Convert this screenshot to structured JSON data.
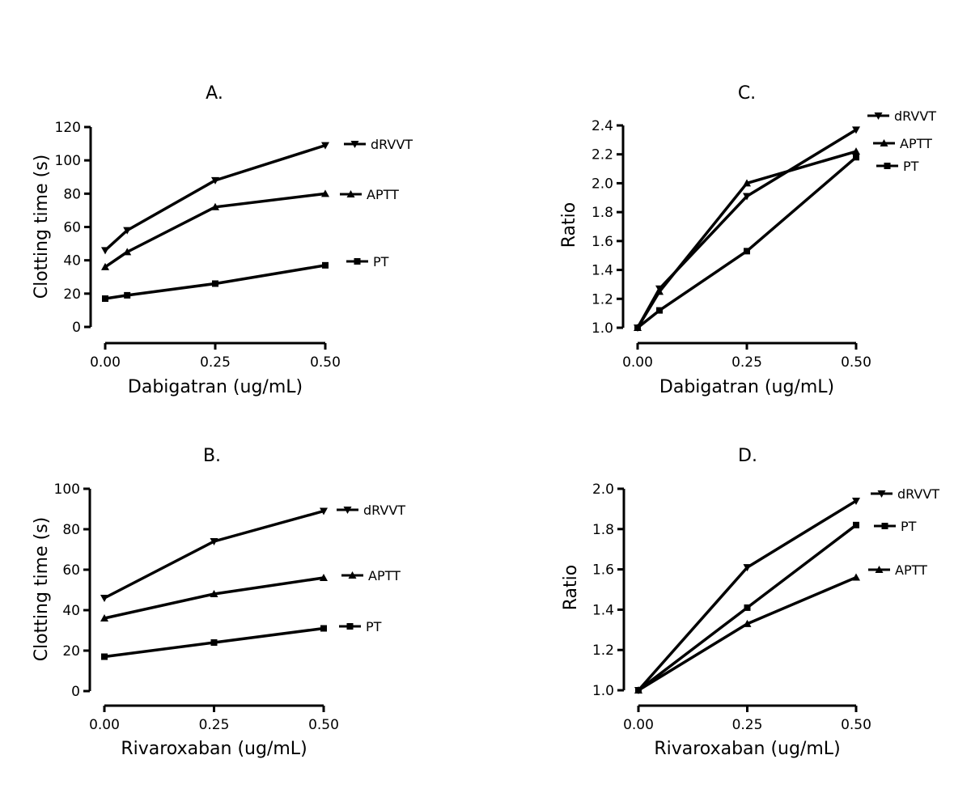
{
  "chart_data": [
    {
      "panel": "A.",
      "type": "line",
      "title": "A.",
      "xlabel": "Dabigatran (ug/mL)",
      "ylabel": "Clotting  time  (s)",
      "xlim": [
        0,
        0.5
      ],
      "ylim": [
        0,
        120
      ],
      "xticks": [
        "0.00",
        "0.25",
        "0.50"
      ],
      "yticks": [
        "0",
        "20",
        "40",
        "60",
        "80",
        "100",
        "120"
      ],
      "grid": false,
      "x": [
        0,
        0.05,
        0.25,
        0.5
      ],
      "series": [
        {
          "name": "dRVVT",
          "marker": "triangle-down",
          "values": [
            46,
            58,
            88,
            109
          ]
        },
        {
          "name": "APTT",
          "marker": "triangle-up",
          "values": [
            36,
            45,
            72,
            80
          ]
        },
        {
          "name": "PT",
          "marker": "square",
          "values": [
            17,
            19,
            26,
            37
          ]
        }
      ]
    },
    {
      "panel": "C.",
      "type": "line",
      "title": "C.",
      "xlabel": "Dabigatran (ug/mL)",
      "ylabel": "Ratio",
      "xlim": [
        0,
        0.5
      ],
      "ylim": [
        1.0,
        2.4
      ],
      "xticks": [
        "0.00",
        "0.25",
        "0.50"
      ],
      "yticks": [
        "1.0",
        "1.2",
        "1.4",
        "1.6",
        "1.8",
        "2.0",
        "2.2",
        "2.4"
      ],
      "grid": false,
      "x": [
        0,
        0.05,
        0.25,
        0.5
      ],
      "series": [
        {
          "name": "dRVVT",
          "marker": "triangle-down",
          "values": [
            1.0,
            1.27,
            1.91,
            2.37
          ]
        },
        {
          "name": "APTT",
          "marker": "triangle-up",
          "values": [
            1.0,
            1.25,
            2.0,
            2.22
          ]
        },
        {
          "name": "PT",
          "marker": "square",
          "values": [
            1.0,
            1.12,
            1.53,
            2.18
          ]
        }
      ]
    },
    {
      "panel": "B.",
      "type": "line",
      "title": "B.",
      "xlabel": "Rivaroxaban (ug/mL)",
      "ylabel": "Clotting  time  (s)",
      "xlim": [
        0,
        0.5
      ],
      "ylim": [
        0,
        100
      ],
      "xticks": [
        "0.00",
        "0.25",
        "0.50"
      ],
      "yticks": [
        "0",
        "20",
        "40",
        "60",
        "80",
        "100"
      ],
      "grid": false,
      "x": [
        0,
        0.25,
        0.5
      ],
      "series": [
        {
          "name": "dRVVT",
          "marker": "triangle-down",
          "values": [
            46,
            74,
            89
          ]
        },
        {
          "name": "APTT",
          "marker": "triangle-up",
          "values": [
            36,
            48,
            56
          ]
        },
        {
          "name": "PT",
          "marker": "square",
          "values": [
            17,
            24,
            31
          ]
        }
      ]
    },
    {
      "panel": "D.",
      "type": "line",
      "title": "D.",
      "xlabel": "Rivaroxaban (ug/mL)",
      "ylabel": "Ratio",
      "xlim": [
        0,
        0.5
      ],
      "ylim": [
        1.0,
        2.0
      ],
      "xticks": [
        "0.00",
        "0.25",
        "0.50"
      ],
      "yticks": [
        "1.0",
        "1.2",
        "1.4",
        "1.6",
        "1.8",
        "2.0"
      ],
      "grid": false,
      "x": [
        0,
        0.25,
        0.5
      ],
      "series": [
        {
          "name": "dRVVT",
          "marker": "triangle-down",
          "values": [
            1.0,
            1.61,
            1.94
          ]
        },
        {
          "name": "PT",
          "marker": "square",
          "values": [
            1.0,
            1.41,
            1.82
          ]
        },
        {
          "name": "APTT",
          "marker": "triangle-up",
          "values": [
            1.0,
            1.33,
            1.56
          ]
        }
      ]
    }
  ]
}
